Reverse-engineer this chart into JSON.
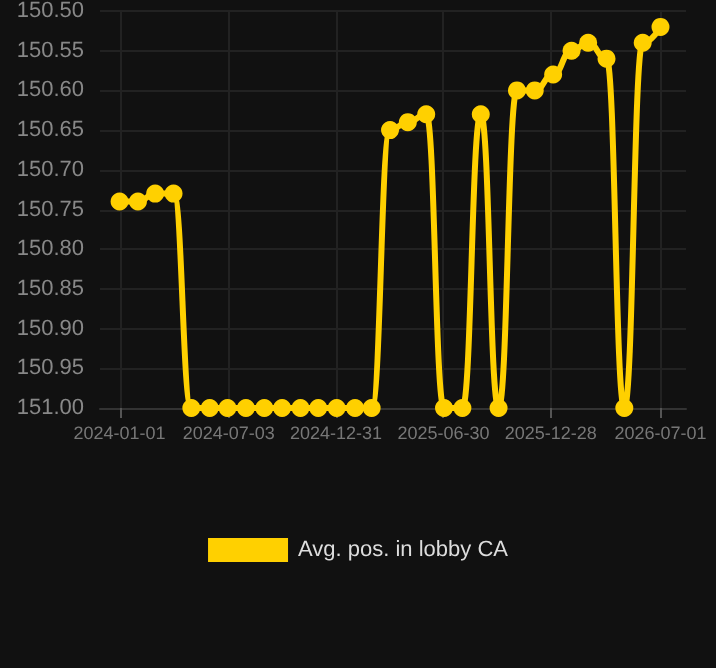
{
  "chart_data": {
    "type": "line",
    "x": [
      "2024-01-01",
      "2024-02-01",
      "2024-03-01",
      "2024-04-01",
      "2024-05-01",
      "2024-06-01",
      "2024-07-01",
      "2024-08-01",
      "2024-09-01",
      "2024-10-01",
      "2024-11-01",
      "2024-12-01",
      "2025-01-01",
      "2025-02-01",
      "2025-03-01",
      "2025-04-01",
      "2025-05-01",
      "2025-06-01",
      "2025-07-01",
      "2025-08-01",
      "2025-09-01",
      "2025-10-01",
      "2025-11-01",
      "2025-12-01",
      "2026-01-01",
      "2026-02-01",
      "2026-03-01",
      "2026-04-01",
      "2026-05-01",
      "2026-06-01",
      "2026-07-01"
    ],
    "series": [
      {
        "name": "Avg. pos. in lobby CA",
        "color": "#ffd000",
        "values": [
          150.74,
          150.74,
          150.73,
          150.73,
          151.0,
          151.0,
          151.0,
          151.0,
          151.0,
          151.0,
          151.0,
          151.0,
          151.0,
          151.0,
          151.0,
          150.65,
          150.64,
          150.63,
          151.0,
          151.0,
          150.63,
          151.0,
          150.6,
          150.6,
          150.58,
          150.55,
          150.54,
          150.56,
          151.0,
          150.54,
          150.52
        ]
      }
    ],
    "xlim": [
      "2023-11-29",
      "2026-08-13"
    ],
    "xticks": [
      "2024-01-01",
      "2024-07-03",
      "2024-12-31",
      "2025-06-30",
      "2025-12-28",
      "2026-07-01"
    ],
    "ylim": [
      151.0,
      150.5
    ],
    "yticks": [
      {
        "value": 150.5,
        "label": "150.50"
      },
      {
        "value": 150.55,
        "label": "150.55"
      },
      {
        "value": 150.6,
        "label": "150.60"
      },
      {
        "value": 150.65,
        "label": "150.65"
      },
      {
        "value": 150.7,
        "label": "150.70"
      },
      {
        "value": 150.75,
        "label": "150.75"
      },
      {
        "value": 150.8,
        "label": "150.80"
      },
      {
        "value": 150.85,
        "label": "150.85"
      },
      {
        "value": 150.9,
        "label": "150.90"
      },
      {
        "value": 150.95,
        "label": "150.95"
      },
      {
        "value": 151.0,
        "label": "151.00"
      }
    ],
    "grid": true,
    "legend": "bottom",
    "marker": "circle",
    "line_style": "solid"
  }
}
